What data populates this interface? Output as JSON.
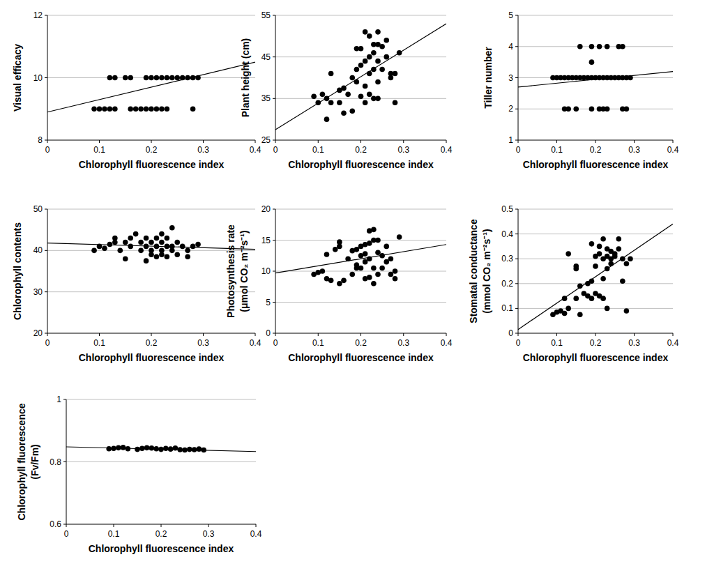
{
  "chart_data": [
    {
      "type": "scatter",
      "y_label": "Visual efficacy",
      "x_label": "Chlorophyll fluorescence index",
      "xlim": [
        0,
        0.4
      ],
      "xticks": [
        0,
        0.1,
        0.2,
        0.3,
        0.4
      ],
      "ylim": [
        8,
        12
      ],
      "yticks": [
        8,
        10,
        12
      ],
      "grid": true,
      "series": [
        {
          "type": "scatter",
          "marker": "circle",
          "color": "#000000",
          "x": [
            0.12,
            0.13,
            0.15,
            0.16,
            0.19,
            0.2,
            0.21,
            0.22,
            0.23,
            0.24,
            0.25,
            0.26,
            0.27,
            0.28,
            0.29,
            0.09,
            0.1,
            0.11,
            0.12,
            0.13,
            0.16,
            0.17,
            0.18,
            0.19,
            0.2,
            0.21,
            0.22,
            0.23,
            0.28
          ],
          "values": [
            10,
            10,
            10,
            10,
            10,
            10,
            10,
            10,
            10,
            10,
            10,
            10,
            10,
            10,
            10,
            9,
            9,
            9,
            9,
            9,
            9,
            9,
            9,
            9,
            9,
            9,
            9,
            9,
            9
          ]
        },
        {
          "type": "line",
          "line_style": "solid",
          "color": "#000000",
          "x": [
            0,
            0.4
          ],
          "values": [
            8.9,
            10.5
          ]
        }
      ]
    },
    {
      "type": "scatter",
      "y_label": "Plant height (cm)",
      "x_label": "Chlorophyll fluorescence index",
      "xlim": [
        0,
        0.4
      ],
      "xticks": [
        0,
        0.1,
        0.2,
        0.3,
        0.4
      ],
      "ylim": [
        25,
        55
      ],
      "yticks": [
        25,
        35,
        45,
        55
      ],
      "grid": true,
      "series": [
        {
          "type": "scatter",
          "marker": "circle",
          "color": "#000000",
          "x": [
            0.09,
            0.1,
            0.11,
            0.12,
            0.12,
            0.13,
            0.13,
            0.15,
            0.15,
            0.16,
            0.16,
            0.17,
            0.18,
            0.18,
            0.19,
            0.19,
            0.19,
            0.2,
            0.2,
            0.2,
            0.21,
            0.21,
            0.21,
            0.21,
            0.22,
            0.22,
            0.22,
            0.22,
            0.23,
            0.23,
            0.23,
            0.23,
            0.24,
            0.24,
            0.24,
            0.24,
            0.24,
            0.25,
            0.25,
            0.26,
            0.26,
            0.27,
            0.27,
            0.28,
            0.28,
            0.29
          ],
          "values": [
            35.5,
            34,
            36,
            35,
            30,
            41,
            34,
            37,
            34,
            37.5,
            31.5,
            36,
            32,
            40,
            47,
            42,
            39,
            43,
            35.5,
            47,
            51,
            44,
            38,
            34,
            50,
            45,
            41,
            36,
            48,
            46,
            42,
            35,
            51,
            48,
            44,
            39,
            35,
            47.5,
            42,
            45,
            49,
            41,
            40,
            34,
            41,
            46
          ]
        },
        {
          "type": "line",
          "line_style": "solid",
          "color": "#000000",
          "x": [
            0,
            0.4
          ],
          "values": [
            27.5,
            53
          ]
        }
      ]
    },
    {
      "type": "scatter",
      "y_label": "Tiller number",
      "x_label": "Chlorophyll fluorescence index",
      "xlim": [
        0,
        0.4
      ],
      "xticks": [
        0,
        0.1,
        0.2,
        0.3,
        0.4
      ],
      "ylim": [
        1,
        5
      ],
      "yticks": [
        1,
        2,
        3,
        4,
        5
      ],
      "grid": true,
      "series": [
        {
          "type": "scatter",
          "marker": "circle",
          "color": "#000000",
          "x": [
            0.09,
            0.1,
            0.11,
            0.12,
            0.13,
            0.14,
            0.15,
            0.16,
            0.17,
            0.18,
            0.19,
            0.2,
            0.21,
            0.22,
            0.23,
            0.24,
            0.25,
            0.26,
            0.27,
            0.28,
            0.29,
            0.16,
            0.19,
            0.21,
            0.23,
            0.26,
            0.27,
            0.19,
            0.12,
            0.13,
            0.15,
            0.19,
            0.21,
            0.22,
            0.23,
            0.27,
            0.28
          ],
          "values": [
            3,
            3,
            3,
            3,
            3,
            3,
            3,
            3,
            3,
            3,
            3,
            3,
            3,
            3,
            3,
            3,
            3,
            3,
            3,
            3,
            3,
            4,
            4,
            4,
            4,
            4,
            4,
            3.5,
            2,
            2,
            2,
            2,
            2,
            2,
            2,
            2,
            2
          ]
        },
        {
          "type": "line",
          "line_style": "solid",
          "color": "#000000",
          "x": [
            0,
            0.4
          ],
          "values": [
            2.7,
            3.2
          ]
        }
      ]
    },
    {
      "type": "scatter",
      "y_label": "Chlorophyll contents",
      "x_label": "Chlorophyll fluorescence index",
      "xlim": [
        0,
        0.4
      ],
      "xticks": [
        0,
        0.1,
        0.2,
        0.3,
        0.4
      ],
      "ylim": [
        20,
        50
      ],
      "yticks": [
        20,
        30,
        40,
        50
      ],
      "grid": true,
      "series": [
        {
          "type": "scatter",
          "marker": "circle",
          "color": "#000000",
          "x": [
            0.09,
            0.1,
            0.11,
            0.12,
            0.13,
            0.13,
            0.14,
            0.15,
            0.15,
            0.16,
            0.16,
            0.17,
            0.18,
            0.18,
            0.19,
            0.19,
            0.19,
            0.2,
            0.2,
            0.2,
            0.21,
            0.21,
            0.21,
            0.22,
            0.22,
            0.22,
            0.22,
            0.23,
            0.23,
            0.23,
            0.24,
            0.24,
            0.24,
            0.25,
            0.25,
            0.26,
            0.27,
            0.27,
            0.28,
            0.29
          ],
          "values": [
            40,
            41,
            40.5,
            41.5,
            43,
            42,
            40,
            38,
            42,
            43,
            41,
            44,
            42,
            40,
            41,
            43,
            37.5,
            42,
            40,
            39,
            41,
            43,
            38.5,
            44,
            42,
            40,
            39,
            43,
            41,
            38.5,
            45.5,
            41,
            40,
            42,
            39,
            41,
            40,
            38.5,
            41,
            41.5
          ]
        },
        {
          "type": "line",
          "line_style": "solid",
          "color": "#000000",
          "x": [
            0,
            0.4
          ],
          "values": [
            41.8,
            40.3
          ]
        }
      ]
    },
    {
      "type": "scatter",
      "y_label": [
        "Photosynthesis rate",
        "(μmol CO₂ m⁻²s⁻¹)"
      ],
      "x_label": "Chlorophyll fluorescence index",
      "xlim": [
        0,
        0.4
      ],
      "xticks": [
        0,
        0.1,
        0.2,
        0.3,
        0.4
      ],
      "ylim": [
        0,
        20
      ],
      "yticks": [
        0,
        5,
        10,
        15,
        20
      ],
      "grid": true,
      "series": [
        {
          "type": "scatter",
          "marker": "circle",
          "color": "#000000",
          "x": [
            0.09,
            0.1,
            0.11,
            0.12,
            0.12,
            0.13,
            0.14,
            0.15,
            0.15,
            0.15,
            0.16,
            0.17,
            0.18,
            0.18,
            0.19,
            0.19,
            0.19,
            0.2,
            0.2,
            0.2,
            0.21,
            0.21,
            0.21,
            0.21,
            0.22,
            0.22,
            0.22,
            0.22,
            0.23,
            0.23,
            0.23,
            0.23,
            0.24,
            0.24,
            0.24,
            0.25,
            0.25,
            0.26,
            0.26,
            0.27,
            0.27,
            0.28,
            0.28,
            0.29
          ],
          "values": [
            9.5,
            9.8,
            10,
            12.7,
            8.8,
            8.5,
            13.5,
            14.7,
            14,
            8,
            8.5,
            12,
            13.3,
            9.5,
            10.5,
            13.5,
            11,
            12.5,
            10.5,
            14,
            12.8,
            8.8,
            14.3,
            11.5,
            16.5,
            9,
            14.5,
            12,
            16.7,
            15,
            8,
            10.5,
            15,
            13,
            9.5,
            12.5,
            10.5,
            11.5,
            14,
            12,
            9.5,
            10,
            8.8,
            15.5
          ]
        },
        {
          "type": "line",
          "line_style": "solid",
          "color": "#000000",
          "x": [
            0,
            0.4
          ],
          "values": [
            9.7,
            14.3
          ]
        }
      ]
    },
    {
      "type": "scatter",
      "y_label": [
        "Stomatal conductance",
        "(mmol CO₂ m⁻²s⁻¹)"
      ],
      "x_label": "Chlorophyll fluorescence index",
      "xlim": [
        0,
        0.4
      ],
      "xticks": [
        0,
        0.1,
        0.2,
        0.3,
        0.4
      ],
      "ylim": [
        0,
        0.5
      ],
      "yticks": [
        0,
        0.1,
        0.2,
        0.3,
        0.4,
        0.5
      ],
      "grid": true,
      "series": [
        {
          "type": "scatter",
          "marker": "circle",
          "color": "#000000",
          "x": [
            0.09,
            0.1,
            0.11,
            0.12,
            0.12,
            0.13,
            0.13,
            0.15,
            0.15,
            0.15,
            0.16,
            0.16,
            0.17,
            0.18,
            0.18,
            0.19,
            0.19,
            0.19,
            0.2,
            0.2,
            0.2,
            0.21,
            0.21,
            0.21,
            0.22,
            0.22,
            0.22,
            0.22,
            0.23,
            0.23,
            0.23,
            0.23,
            0.24,
            0.24,
            0.24,
            0.25,
            0.25,
            0.26,
            0.26,
            0.27,
            0.27,
            0.28,
            0.28,
            0.29
          ],
          "values": [
            0.075,
            0.085,
            0.09,
            0.08,
            0.14,
            0.32,
            0.1,
            0.27,
            0.26,
            0.14,
            0.19,
            0.075,
            0.16,
            0.15,
            0.2,
            0.36,
            0.14,
            0.21,
            0.27,
            0.31,
            0.16,
            0.35,
            0.32,
            0.15,
            0.38,
            0.3,
            0.22,
            0.14,
            0.34,
            0.31,
            0.1,
            0.26,
            0.33,
            0.3,
            0.28,
            0.32,
            0.31,
            0.38,
            0.34,
            0.21,
            0.3,
            0.28,
            0.09,
            0.3
          ]
        },
        {
          "type": "line",
          "line_style": "solid",
          "color": "#000000",
          "x": [
            0,
            0.4
          ],
          "values": [
            0.015,
            0.44
          ]
        }
      ]
    },
    {
      "type": "scatter",
      "y_label": [
        "Chlorophyll fluorescence",
        "(Fv/Fm)"
      ],
      "x_label": "Chlorophyll fluorescence index",
      "xlim": [
        0,
        0.4
      ],
      "xticks": [
        0,
        0.1,
        0.2,
        0.3,
        0.4
      ],
      "ylim": [
        0.6,
        1
      ],
      "yticks": [
        0.6,
        0.8,
        1
      ],
      "grid": true,
      "series": [
        {
          "type": "scatter",
          "marker": "circle",
          "color": "#000000",
          "x": [
            0.09,
            0.1,
            0.11,
            0.12,
            0.13,
            0.15,
            0.16,
            0.17,
            0.18,
            0.19,
            0.2,
            0.21,
            0.22,
            0.23,
            0.24,
            0.25,
            0.26,
            0.27,
            0.28,
            0.29
          ],
          "values": [
            0.842,
            0.843,
            0.845,
            0.846,
            0.842,
            0.84,
            0.843,
            0.845,
            0.844,
            0.842,
            0.84,
            0.843,
            0.841,
            0.844,
            0.839,
            0.838,
            0.84,
            0.839,
            0.841,
            0.838
          ]
        },
        {
          "type": "line",
          "line_style": "solid",
          "color": "#000000",
          "x": [
            0,
            0.4
          ],
          "values": [
            0.848,
            0.833
          ]
        }
      ]
    }
  ]
}
